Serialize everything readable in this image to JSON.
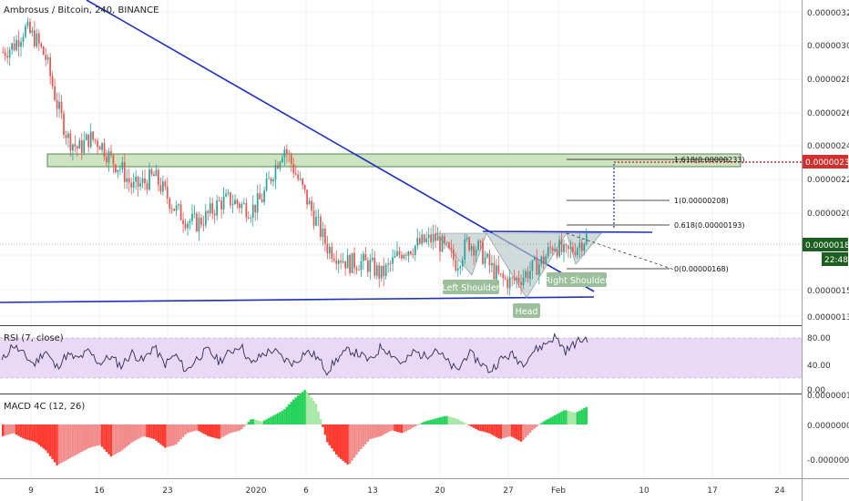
{
  "chart_data": [
    {
      "type": "candlestick",
      "title": "Ambrosus / Bitcoin, 240, BINANCE",
      "x_tick_labels": [
        "9",
        "16",
        "23",
        "2020",
        "6",
        "13",
        "20",
        "27",
        "Feb",
        "10",
        "17",
        "24"
      ],
      "y_tick_labels": [
        "0.00000320",
        "0.00000300",
        "0.00000280",
        "0.00000260",
        "0.00000240",
        "0.00000220",
        "0.00000200",
        "0.00000182",
        "0.00000155",
        "0.00000139"
      ],
      "ylim": [
        1.32e-06,
        3.25e-06
      ],
      "last_price": "0.00000182",
      "countdown": "22:48",
      "target_price": "0.00000230",
      "fib_levels": [
        {
          "label": "1.618(0.00000233)",
          "value": 2.33e-06
        },
        {
          "label": "1(0.00000208)",
          "value": 2.08e-06
        },
        {
          "label": "0.618(0.00000193)",
          "value": 1.93e-06
        },
        {
          "label": "0(0.00000168)",
          "value": 1.68e-06
        }
      ],
      "pattern_labels": [
        "Left Shoulder",
        "Head",
        "Right Shoulder"
      ],
      "price_anchors": [
        2.96e-06,
        3e-06,
        3.1e-06,
        3.04e-06,
        2.92e-06,
        2.65e-06,
        2.45e-06,
        2.38e-06,
        2.45e-06,
        2.42e-06,
        2.32e-06,
        2.26e-06,
        2.15e-06,
        2.18e-06,
        2.22e-06,
        2.12e-06,
        2.02e-06,
        1.96e-06,
        1.94e-06,
        1.99e-06,
        2.06e-06,
        2.08e-06,
        2.05e-06,
        2.02e-06,
        2.09e-06,
        2.25e-06,
        2.4e-06,
        2.25e-06,
        2.1e-06,
        1.95e-06,
        1.8e-06,
        1.75e-06,
        1.7e-06,
        1.71e-06,
        1.69e-06,
        1.63e-06,
        1.7e-06,
        1.78e-06,
        1.8e-06,
        1.83e-06,
        1.85e-06,
        1.78e-06,
        1.7e-06,
        1.83e-06,
        1.79e-06,
        1.69e-06,
        1.61e-06,
        1.59e-06,
        1.62e-06,
        1.67e-06,
        1.72e-06,
        1.82e-06,
        1.75e-06,
        1.8e-06,
        1.86e-06
      ],
      "colors": {
        "up": "#26a69a",
        "down": "#ef5350",
        "trendline": "#1c2fbf",
        "zone": "#cde3c1",
        "target": "#d32f2f",
        "last": "#1b5e20"
      }
    },
    {
      "type": "line",
      "title": "RSI (7, close)",
      "y_tick_labels": [
        "80.00",
        "40.00",
        "0.00"
      ],
      "ylim": [
        0,
        100
      ],
      "bands": [
        80,
        20
      ],
      "rsi_anchors": [
        45,
        70,
        55,
        40,
        62,
        35,
        55,
        48,
        60,
        42,
        52,
        38,
        58,
        45,
        68,
        40,
        55,
        30,
        50,
        62,
        45,
        58,
        70,
        40,
        55,
        62,
        48,
        42,
        60,
        52,
        30,
        50,
        62,
        55,
        45,
        68,
        55,
        40,
        60,
        52,
        65,
        45,
        30,
        58,
        45,
        30,
        48,
        55,
        42,
        60,
        70,
        82,
        60,
        74,
        80
      ]
    },
    {
      "type": "bar",
      "title": "MACD 4C (12, 26)",
      "y_tick_labels": [
        "0.00000010",
        "0.00000000",
        "-0.00000010"
      ],
      "ylim": [
        -1.3e-07,
        1.3e-07
      ],
      "macd_anchors": [
        -4,
        -3,
        -5,
        -6,
        -9,
        -14,
        -12,
        -10,
        -8,
        -7,
        -11,
        -9,
        -6,
        -4,
        -5,
        -8,
        -7,
        -3,
        -2,
        -4,
        -5,
        -3,
        -2,
        2,
        1,
        3,
        5,
        9,
        12,
        7,
        -6,
        -11,
        -14,
        -9,
        -5,
        -4,
        -2,
        -3,
        -1,
        1,
        2,
        3,
        2,
        0,
        -2,
        -3,
        -5,
        -4,
        -6,
        -2,
        1,
        3,
        5,
        4,
        6
      ],
      "colors": {
        "pos_up": "#26d35a",
        "pos_down": "#a5e8a5",
        "neg_down": "#ff3b30",
        "neg_up": "#f28c8c"
      }
    }
  ]
}
